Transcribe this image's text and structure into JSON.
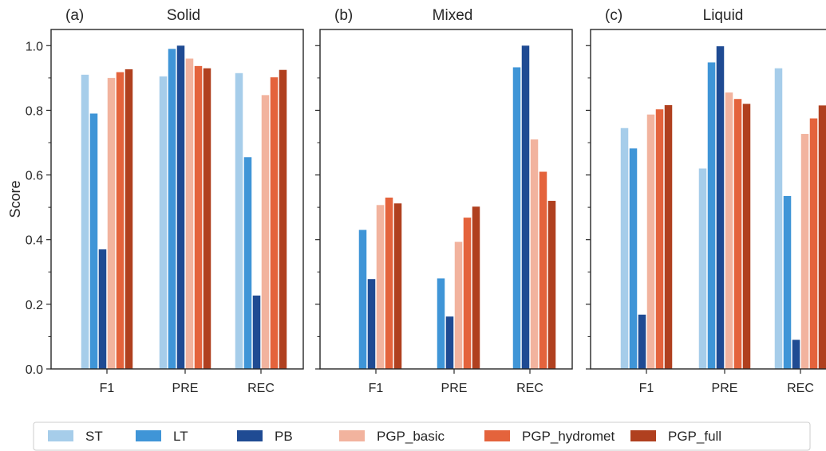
{
  "chart_data": [
    {
      "type": "bar",
      "panel_label": "(a)",
      "title": "Solid",
      "categories": [
        "F1",
        "PRE",
        "REC"
      ],
      "ylabel": "Score",
      "ylim": [
        0,
        1.05
      ],
      "yticks": [
        "0.0",
        "0.2",
        "0.4",
        "0.6",
        "0.8",
        "1.0"
      ],
      "series": [
        {
          "name": "ST",
          "values": [
            0.91,
            0.905,
            0.915
          ]
        },
        {
          "name": "LT",
          "values": [
            0.79,
            0.99,
            0.655
          ]
        },
        {
          "name": "PB",
          "values": [
            0.37,
            1.0,
            0.227
          ]
        },
        {
          "name": "PGP_basic",
          "values": [
            0.9,
            0.96,
            0.847
          ]
        },
        {
          "name": "PGP_hydromet",
          "values": [
            0.918,
            0.937,
            0.902
          ]
        },
        {
          "name": "PGP_full",
          "values": [
            0.927,
            0.93,
            0.925
          ]
        }
      ]
    },
    {
      "type": "bar",
      "panel_label": "(b)",
      "title": "Mixed",
      "categories": [
        "F1",
        "PRE",
        "REC"
      ],
      "ylim": [
        0,
        1.05
      ],
      "series": [
        {
          "name": "ST",
          "values": [
            0.0,
            0.0,
            0.0
          ]
        },
        {
          "name": "LT",
          "values": [
            0.43,
            0.28,
            0.933
          ]
        },
        {
          "name": "PB",
          "values": [
            0.278,
            0.162,
            1.0
          ]
        },
        {
          "name": "PGP_basic",
          "values": [
            0.507,
            0.393,
            0.71
          ]
        },
        {
          "name": "PGP_hydromet",
          "values": [
            0.53,
            0.468,
            0.61
          ]
        },
        {
          "name": "PGP_full",
          "values": [
            0.512,
            0.502,
            0.52
          ]
        }
      ]
    },
    {
      "type": "bar",
      "panel_label": "(c)",
      "title": "Liquid",
      "categories": [
        "F1",
        "PRE",
        "REC"
      ],
      "ylim": [
        0,
        1.05
      ],
      "series": [
        {
          "name": "ST",
          "values": [
            0.745,
            0.62,
            0.93
          ]
        },
        {
          "name": "LT",
          "values": [
            0.682,
            0.948,
            0.535
          ]
        },
        {
          "name": "PB",
          "values": [
            0.168,
            0.998,
            0.09
          ]
        },
        {
          "name": "PGP_basic",
          "values": [
            0.787,
            0.855,
            0.727
          ]
        },
        {
          "name": "PGP_hydromet",
          "values": [
            0.803,
            0.835,
            0.775
          ]
        },
        {
          "name": "PGP_full",
          "values": [
            0.816,
            0.82,
            0.815
          ]
        }
      ]
    }
  ],
  "legend": {
    "placement": "bottom",
    "items": [
      {
        "label": "ST",
        "color": "#a6cdea"
      },
      {
        "label": "LT",
        "color": "#3f95d7"
      },
      {
        "label": "PB",
        "color": "#1f4b93"
      },
      {
        "label": "PGP_basic",
        "color": "#f2b39e"
      },
      {
        "label": "PGP_hydromet",
        "color": "#e4633c"
      },
      {
        "label": "PGP_full",
        "color": "#b0401f"
      }
    ]
  }
}
